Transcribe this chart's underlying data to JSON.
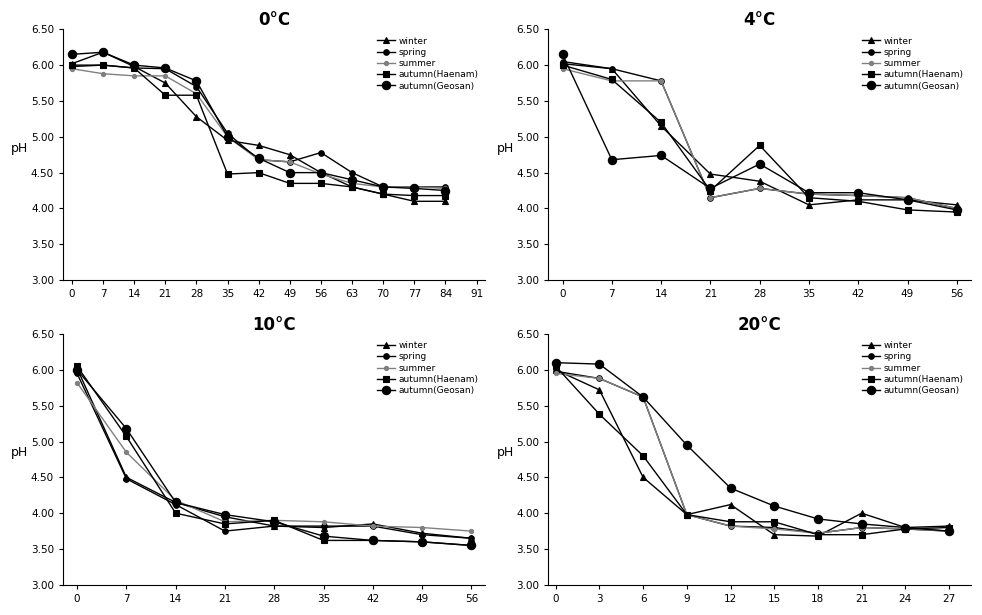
{
  "panels": [
    {
      "title": "0°C",
      "x_ticks": [
        0,
        7,
        14,
        21,
        28,
        35,
        42,
        49,
        56,
        63,
        70,
        77,
        84,
        91
      ],
      "xlim": [
        -2,
        93
      ],
      "series": {
        "winter": [
          6.02,
          6.18,
          5.98,
          5.75,
          5.28,
          4.95,
          4.88,
          4.75,
          4.5,
          4.3,
          4.2,
          4.1,
          4.1,
          null
        ],
        "spring": [
          5.98,
          6.0,
          5.96,
          5.95,
          5.7,
          5.05,
          4.68,
          4.65,
          4.78,
          4.5,
          4.3,
          4.3,
          4.3,
          null
        ],
        "summer": [
          5.95,
          5.88,
          5.85,
          5.85,
          5.6,
          5.0,
          4.68,
          4.65,
          4.48,
          4.35,
          4.3,
          4.3,
          4.28,
          null
        ],
        "autumn_haenam": [
          6.0,
          6.0,
          5.96,
          5.58,
          5.58,
          4.48,
          4.5,
          4.35,
          4.35,
          4.3,
          4.2,
          4.18,
          4.18,
          null
        ],
        "autumn_geosan": [
          6.15,
          6.18,
          6.0,
          5.96,
          5.78,
          5.0,
          4.7,
          4.5,
          4.5,
          4.4,
          4.3,
          4.28,
          4.25,
          null
        ]
      }
    },
    {
      "title": "4°C",
      "x_ticks": [
        0,
        7,
        14,
        21,
        28,
        35,
        42,
        49,
        56
      ],
      "xlim": [
        -2,
        58
      ],
      "series": {
        "winter": [
          6.02,
          5.95,
          5.15,
          4.48,
          4.38,
          4.05,
          4.12,
          4.12,
          4.05
        ],
        "spring": [
          6.05,
          5.95,
          5.78,
          4.15,
          4.28,
          4.2,
          4.18,
          4.15,
          4.0
        ],
        "summer": [
          5.95,
          5.78,
          5.78,
          4.15,
          4.28,
          4.2,
          4.18,
          4.15,
          4.0
        ],
        "autumn_haenam": [
          6.0,
          5.8,
          5.2,
          4.25,
          4.88,
          4.15,
          4.1,
          3.98,
          3.95
        ],
        "autumn_geosan": [
          6.15,
          4.68,
          4.74,
          4.28,
          4.62,
          4.22,
          4.22,
          4.12,
          3.98
        ]
      }
    },
    {
      "title": "10°C",
      "x_ticks": [
        0,
        7,
        14,
        21,
        28,
        35,
        42,
        49,
        56
      ],
      "xlim": [
        -2,
        58
      ],
      "series": {
        "winter": [
          6.02,
          4.5,
          4.15,
          3.95,
          3.82,
          3.8,
          3.85,
          3.72,
          3.65
        ],
        "spring": [
          5.95,
          4.48,
          4.12,
          3.75,
          3.82,
          3.82,
          3.82,
          3.7,
          3.65
        ],
        "summer": [
          5.82,
          4.85,
          4.18,
          3.88,
          3.9,
          3.88,
          3.82,
          3.8,
          3.75
        ],
        "autumn_haenam": [
          6.05,
          5.07,
          4.0,
          3.85,
          3.9,
          3.62,
          3.62,
          3.6,
          3.55
        ],
        "autumn_geosan": [
          6.0,
          5.18,
          4.15,
          3.98,
          3.88,
          3.68,
          3.62,
          3.6,
          3.55
        ]
      }
    },
    {
      "title": "20°C",
      "x_ticks": [
        0,
        3,
        6,
        9,
        12,
        15,
        18,
        21,
        24,
        27
      ],
      "xlim": [
        -0.5,
        28.5
      ],
      "series": {
        "winter": [
          6.0,
          5.72,
          4.5,
          3.98,
          4.12,
          3.7,
          3.68,
          4.0,
          3.8,
          3.82
        ],
        "spring": [
          5.98,
          5.88,
          5.62,
          3.98,
          3.82,
          3.8,
          3.72,
          3.8,
          3.78,
          3.75
        ],
        "summer": [
          5.95,
          5.88,
          5.62,
          3.98,
          3.82,
          3.78,
          3.72,
          3.8,
          3.78,
          3.75
        ],
        "autumn_haenam": [
          6.05,
          5.38,
          4.8,
          3.98,
          3.88,
          3.88,
          3.7,
          3.7,
          3.78,
          3.8
        ],
        "autumn_geosan": [
          6.1,
          6.08,
          5.62,
          4.95,
          4.35,
          4.1,
          3.92,
          3.85,
          3.8,
          3.75
        ]
      }
    }
  ],
  "legend_labels": [
    "winter",
    "spring",
    "summer",
    "autumn(Haenam)",
    "autumn(Geosan)"
  ],
  "series_keys": [
    "winter",
    "spring",
    "summer",
    "autumn_haenam",
    "autumn_geosan"
  ],
  "series_styles": {
    "winter": {
      "marker": "^",
      "markersize": 4,
      "color": "#000000",
      "linewidth": 1.0,
      "linestyle": "-",
      "markerfacecolor": "#000000"
    },
    "spring": {
      "marker": "o",
      "markersize": 4,
      "color": "#000000",
      "linewidth": 1.0,
      "linestyle": "-",
      "markerfacecolor": "#000000"
    },
    "summer": {
      "marker": "o",
      "markersize": 4,
      "color": "#888888",
      "linewidth": 1.0,
      "linestyle": "-",
      "markerfacecolor": "#888888"
    },
    "autumn_haenam": {
      "marker": "s",
      "markersize": 4,
      "color": "#000000",
      "linewidth": 1.0,
      "linestyle": "-",
      "markerfacecolor": "#000000"
    },
    "autumn_geosan": {
      "marker": "o",
      "markersize": 5,
      "color": "#000000",
      "linewidth": 1.0,
      "linestyle": "-",
      "markerfacecolor": "#000000"
    }
  },
  "ylim": [
    3.0,
    6.5
  ],
  "yticks": [
    3.0,
    3.5,
    4.0,
    4.5,
    5.0,
    5.5,
    6.0,
    6.5
  ],
  "ylabel": "pH",
  "background_color": "#ffffff"
}
